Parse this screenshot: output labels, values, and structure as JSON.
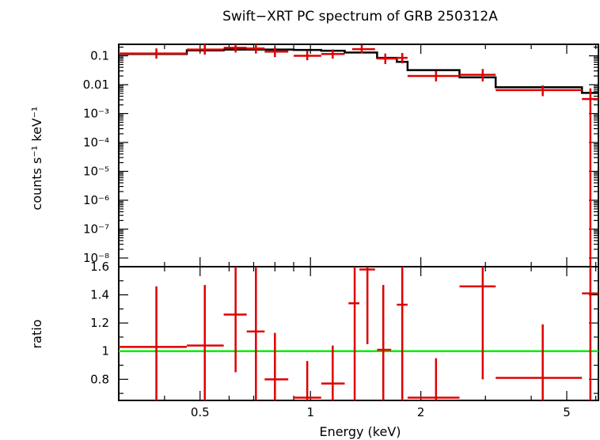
{
  "chart_data": [
    {
      "type": "step",
      "title": "Swift−XRT PC spectrum of GRB 250312A",
      "xlabel": "",
      "ylabel": "counts s⁻¹ keV⁻¹",
      "xscale": "log",
      "yscale": "log",
      "xlim": [
        0.3,
        6.1
      ],
      "ylim": [
        5e-09,
        0.25
      ],
      "yticks": [
        {
          "value": 0.1,
          "label": "0.1"
        },
        {
          "value": 0.01,
          "label": "0.01"
        },
        {
          "value": 0.001,
          "label": "10⁻³"
        },
        {
          "value": 0.0001,
          "label": "10⁻⁴"
        },
        {
          "value": 1e-05,
          "label": "10⁻⁵"
        },
        {
          "value": 1e-06,
          "label": "10⁻⁶"
        },
        {
          "value": 1e-07,
          "label": "10⁻⁷"
        },
        {
          "value": 1e-08,
          "label": "10⁻⁸"
        }
      ],
      "series": [
        {
          "kind": "data",
          "color": "#e00000",
          "points": [
            {
              "x": 0.38,
              "xlo": 0.3,
              "xhi": 0.46,
              "y": 0.12,
              "ylo": 0.08,
              "yhi": 0.18
            },
            {
              "x": 0.515,
              "xlo": 0.46,
              "xhi": 0.58,
              "y": 0.165,
              "ylo": 0.11,
              "yhi": 0.25
            },
            {
              "x": 0.625,
              "xlo": 0.58,
              "xhi": 0.67,
              "y": 0.19,
              "ylo": 0.13,
              "yhi": 0.25
            },
            {
              "x": 0.71,
              "xlo": 0.67,
              "xhi": 0.75,
              "y": 0.18,
              "ylo": 0.12,
              "yhi": 0.25
            },
            {
              "x": 0.8,
              "xlo": 0.75,
              "xhi": 0.87,
              "y": 0.14,
              "ylo": 0.09,
              "yhi": 0.2
            },
            {
              "x": 0.98,
              "xlo": 0.9,
              "xhi": 1.07,
              "y": 0.1,
              "ylo": 0.07,
              "yhi": 0.15
            },
            {
              "x": 1.15,
              "xlo": 1.07,
              "xhi": 1.24,
              "y": 0.115,
              "ylo": 0.08,
              "yhi": 0.165
            },
            {
              "x": 1.38,
              "xlo": 1.3,
              "xhi": 1.5,
              "y": 0.17,
              "ylo": 0.12,
              "yhi": 0.24
            },
            {
              "x": 1.6,
              "xlo": 1.52,
              "xhi": 1.72,
              "y": 0.08,
              "ylo": 0.052,
              "yhi": 0.12
            },
            {
              "x": 1.78,
              "xlo": 1.72,
              "xhi": 1.84,
              "y": 0.085,
              "ylo": 0.055,
              "yhi": 0.125
            },
            {
              "x": 2.2,
              "xlo": 1.84,
              "xhi": 2.55,
              "y": 0.02,
              "ylo": 0.013,
              "yhi": 0.03
            },
            {
              "x": 2.95,
              "xlo": 2.55,
              "xhi": 3.2,
              "y": 0.022,
              "ylo": 0.013,
              "yhi": 0.035
            },
            {
              "x": 4.3,
              "xlo": 3.2,
              "xhi": 5.5,
              "y": 0.0065,
              "ylo": 0.004,
              "yhi": 0.0095
            },
            {
              "x": 5.8,
              "xlo": 5.5,
              "xhi": 6.1,
              "y": 0.0032,
              "ylo": 5e-09,
              "yhi": 0.0075
            }
          ]
        },
        {
          "kind": "model",
          "color": "#000000",
          "steps": [
            {
              "x0": 0.3,
              "x1": 0.46,
              "y": 0.115
            },
            {
              "x0": 0.46,
              "x1": 0.58,
              "y": 0.155
            },
            {
              "x0": 0.58,
              "x1": 0.67,
              "y": 0.165
            },
            {
              "x0": 0.67,
              "x1": 0.75,
              "y": 0.165
            },
            {
              "x0": 0.75,
              "x1": 0.9,
              "y": 0.165
            },
            {
              "x0": 0.9,
              "x1": 1.07,
              "y": 0.16
            },
            {
              "x0": 1.07,
              "x1": 1.24,
              "y": 0.15
            },
            {
              "x0": 1.24,
              "x1": 1.52,
              "y": 0.13
            },
            {
              "x0": 1.52,
              "x1": 1.72,
              "y": 0.085
            },
            {
              "x0": 1.72,
              "x1": 1.84,
              "y": 0.062
            },
            {
              "x0": 1.84,
              "x1": 2.55,
              "y": 0.032
            },
            {
              "x0": 2.55,
              "x1": 3.2,
              "y": 0.018
            },
            {
              "x0": 3.2,
              "x1": 5.5,
              "y": 0.0082
            },
            {
              "x0": 5.5,
              "x1": 6.1,
              "y": 0.0052
            }
          ]
        }
      ]
    },
    {
      "type": "scatter",
      "title": "",
      "xlabel": "Energy (keV)",
      "ylabel": "ratio",
      "xscale": "log",
      "yscale": "linear",
      "xlim": [
        0.3,
        6.1
      ],
      "ylim": [
        0.65,
        1.6
      ],
      "yticks": [
        {
          "value": 0.8,
          "label": "0.8"
        },
        {
          "value": 1.0,
          "label": "1"
        },
        {
          "value": 1.2,
          "label": "1.2"
        },
        {
          "value": 1.4,
          "label": "1.4"
        },
        {
          "value": 1.6,
          "label": "1.6"
        }
      ],
      "xticks": [
        {
          "value": 0.5,
          "label": "0.5"
        },
        {
          "value": 1,
          "label": "1"
        },
        {
          "value": 2,
          "label": "2"
        },
        {
          "value": 5,
          "label": "5"
        }
      ],
      "reference_line": {
        "y": 1.0,
        "color": "#00ee00"
      },
      "series": [
        {
          "kind": "data",
          "color": "#e00000",
          "points": [
            {
              "x": 0.38,
              "xlo": 0.3,
              "xhi": 0.46,
              "y": 1.03,
              "ylo": 0.65,
              "yhi": 1.46
            },
            {
              "x": 0.515,
              "xlo": 0.46,
              "xhi": 0.58,
              "y": 1.04,
              "ylo": 0.65,
              "yhi": 1.47
            },
            {
              "x": 0.625,
              "xlo": 0.58,
              "xhi": 0.67,
              "y": 1.26,
              "ylo": 0.85,
              "yhi": 1.6
            },
            {
              "x": 0.71,
              "xlo": 0.67,
              "xhi": 0.75,
              "y": 1.14,
              "ylo": 0.65,
              "yhi": 1.6
            },
            {
              "x": 0.8,
              "xlo": 0.75,
              "xhi": 0.87,
              "y": 0.8,
              "ylo": 0.65,
              "yhi": 1.13
            },
            {
              "x": 0.98,
              "xlo": 0.9,
              "xhi": 1.07,
              "y": 0.67,
              "ylo": 0.65,
              "yhi": 0.93
            },
            {
              "x": 1.15,
              "xlo": 1.07,
              "xhi": 1.24,
              "y": 0.77,
              "ylo": 0.65,
              "yhi": 1.04
            },
            {
              "x": 1.32,
              "xlo": 1.27,
              "xhi": 1.36,
              "y": 1.34,
              "ylo": 0.65,
              "yhi": 1.6
            },
            {
              "x": 1.43,
              "xlo": 1.36,
              "xhi": 1.5,
              "y": 1.58,
              "ylo": 1.05,
              "yhi": 1.6
            },
            {
              "x": 1.58,
              "xlo": 1.52,
              "xhi": 1.66,
              "y": 1.01,
              "ylo": 0.65,
              "yhi": 1.47
            },
            {
              "x": 1.78,
              "xlo": 1.72,
              "xhi": 1.84,
              "y": 1.33,
              "ylo": 0.65,
              "yhi": 1.6
            },
            {
              "x": 2.2,
              "xlo": 1.84,
              "xhi": 2.55,
              "y": 0.67,
              "ylo": 0.65,
              "yhi": 0.95
            },
            {
              "x": 2.95,
              "xlo": 2.55,
              "xhi": 3.2,
              "y": 1.46,
              "ylo": 0.8,
              "yhi": 1.6
            },
            {
              "x": 4.3,
              "xlo": 3.2,
              "xhi": 5.5,
              "y": 0.81,
              "ylo": 0.65,
              "yhi": 1.19
            },
            {
              "x": 5.8,
              "xlo": 5.5,
              "xhi": 6.1,
              "y": 1.41,
              "ylo": 0.65,
              "yhi": 1.6
            }
          ]
        }
      ]
    }
  ]
}
